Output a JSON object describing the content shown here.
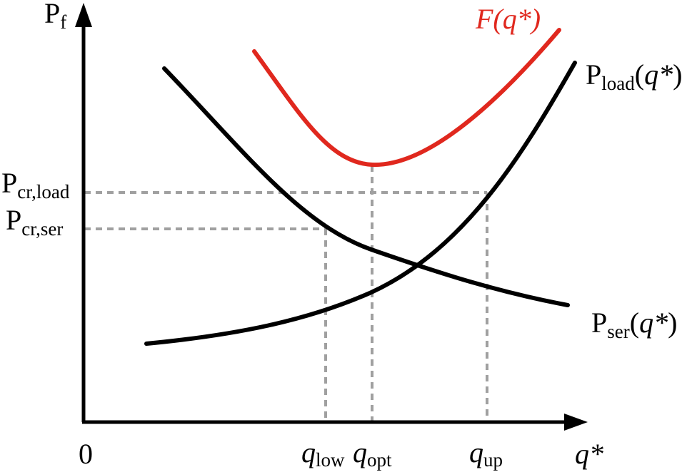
{
  "colors": {
    "axis": "#000000",
    "curve": "#000000",
    "objective": "#e0281e",
    "guide": "#a0a0a0"
  },
  "axes": {
    "y_label_main": "P",
    "y_label_sub": "f",
    "x_label": "q*",
    "origin_label": "0"
  },
  "curves": {
    "objective": {
      "prefix": "F(",
      "var": "q*",
      "suffix": ")"
    },
    "load": {
      "main": "P",
      "sub": "load",
      "open": "(",
      "var": "q*",
      "close": ")"
    },
    "ser": {
      "main": "P",
      "sub": "ser",
      "open": "(",
      "var": "q*",
      "close": ")"
    }
  },
  "y_ticks": {
    "cr_load": {
      "main": "P",
      "sub": "cr,load"
    },
    "cr_ser": {
      "main": "P",
      "sub": "cr,ser"
    }
  },
  "x_ticks": {
    "low": {
      "main": "q",
      "sub": "low"
    },
    "opt": {
      "main": "q",
      "sub": "opt"
    },
    "up": {
      "main": "q",
      "sub": "up"
    }
  }
}
